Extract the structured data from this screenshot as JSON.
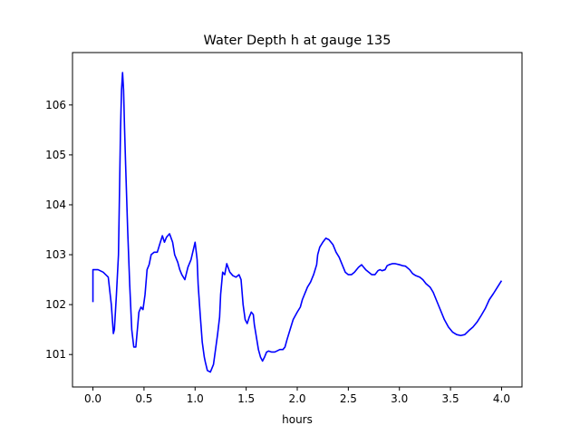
{
  "chart_data": {
    "type": "line",
    "title": "Water Depth h at gauge 135",
    "xlabel": "hours",
    "ylabel": "",
    "xlim": [
      -0.2,
      4.2
    ],
    "ylim": [
      100.35,
      107.05
    ],
    "xticks": [
      0.0,
      0.5,
      1.0,
      1.5,
      2.0,
      2.5,
      3.0,
      3.5,
      4.0
    ],
    "xtick_labels": [
      "0.0",
      "0.5",
      "1.0",
      "1.5",
      "2.0",
      "2.5",
      "3.0",
      "3.5",
      "4.0"
    ],
    "yticks": [
      101,
      102,
      103,
      104,
      105,
      106
    ],
    "ytick_labels": [
      "101",
      "102",
      "103",
      "104",
      "105",
      "106"
    ],
    "grid": false,
    "color": "#0000ff",
    "series": [
      {
        "x": [
          0.0,
          0.0,
          0.05,
          0.1,
          0.15,
          0.18,
          0.2,
          0.21,
          0.23,
          0.25,
          0.27,
          0.28,
          0.29,
          0.3,
          0.31,
          0.32,
          0.34,
          0.36,
          0.38,
          0.4,
          0.42,
          0.45,
          0.47,
          0.49,
          0.51,
          0.53,
          0.55,
          0.57,
          0.6,
          0.63,
          0.66,
          0.68,
          0.7,
          0.72,
          0.75,
          0.78,
          0.8,
          0.83,
          0.85,
          0.87,
          0.9,
          0.93,
          0.96,
          1.0,
          1.02,
          1.03,
          1.05,
          1.07,
          1.09,
          1.1,
          1.12,
          1.15,
          1.18,
          1.2,
          1.22,
          1.24,
          1.25,
          1.27,
          1.29,
          1.31,
          1.34,
          1.37,
          1.4,
          1.43,
          1.45,
          1.47,
          1.49,
          1.51,
          1.53,
          1.55,
          1.57,
          1.58,
          1.6,
          1.62,
          1.64,
          1.66,
          1.68,
          1.7,
          1.72,
          1.75,
          1.78,
          1.81,
          1.83,
          1.86,
          1.88,
          1.9,
          1.93,
          1.96,
          2.0,
          2.03,
          2.05,
          2.08,
          2.1,
          2.13,
          2.16,
          2.19,
          2.2,
          2.22,
          2.25,
          2.28,
          2.31,
          2.35,
          2.38,
          2.41,
          2.44,
          2.47,
          2.5,
          2.53,
          2.56,
          2.6,
          2.63,
          2.65,
          2.67,
          2.7,
          2.73,
          2.76,
          2.79,
          2.81,
          2.83,
          2.86,
          2.88,
          2.9,
          2.93,
          2.96,
          3.0,
          3.03,
          3.06,
          3.1,
          3.13,
          3.16,
          3.2,
          3.23,
          3.26,
          3.3,
          3.33,
          3.36,
          3.4,
          3.44,
          3.48,
          3.52,
          3.56,
          3.6,
          3.64,
          3.68,
          3.72,
          3.76,
          3.8,
          3.84,
          3.88,
          3.92,
          3.96,
          4.0
        ],
        "y": [
          102.05,
          102.7,
          102.7,
          102.65,
          102.55,
          102.0,
          101.42,
          101.5,
          102.2,
          103.0,
          105.5,
          106.3,
          106.65,
          106.3,
          105.5,
          104.8,
          103.5,
          102.4,
          101.5,
          101.15,
          101.15,
          101.85,
          101.95,
          101.9,
          102.2,
          102.7,
          102.8,
          103.0,
          103.05,
          103.05,
          103.25,
          103.38,
          103.25,
          103.35,
          103.42,
          103.25,
          103.0,
          102.85,
          102.7,
          102.6,
          102.5,
          102.75,
          102.9,
          103.25,
          102.9,
          102.4,
          101.8,
          101.25,
          100.95,
          100.85,
          100.68,
          100.65,
          100.8,
          101.1,
          101.4,
          101.75,
          102.2,
          102.65,
          102.6,
          102.82,
          102.65,
          102.58,
          102.55,
          102.6,
          102.5,
          102.0,
          101.7,
          101.62,
          101.75,
          101.85,
          101.8,
          101.6,
          101.35,
          101.1,
          100.95,
          100.87,
          100.95,
          101.05,
          101.07,
          101.05,
          101.05,
          101.08,
          101.1,
          101.1,
          101.15,
          101.3,
          101.5,
          101.7,
          101.85,
          101.95,
          102.1,
          102.25,
          102.35,
          102.45,
          102.6,
          102.8,
          103.0,
          103.15,
          103.25,
          103.33,
          103.3,
          103.2,
          103.05,
          102.95,
          102.8,
          102.65,
          102.6,
          102.6,
          102.65,
          102.75,
          102.8,
          102.75,
          102.7,
          102.65,
          102.6,
          102.6,
          102.68,
          102.7,
          102.68,
          102.7,
          102.78,
          102.8,
          102.82,
          102.82,
          102.8,
          102.78,
          102.77,
          102.7,
          102.62,
          102.58,
          102.55,
          102.5,
          102.42,
          102.35,
          102.25,
          102.1,
          101.9,
          101.7,
          101.55,
          101.45,
          101.4,
          101.38,
          101.4,
          101.48,
          101.55,
          101.65,
          101.78,
          101.92,
          102.1,
          102.22,
          102.35,
          102.48
        ]
      }
    ]
  }
}
